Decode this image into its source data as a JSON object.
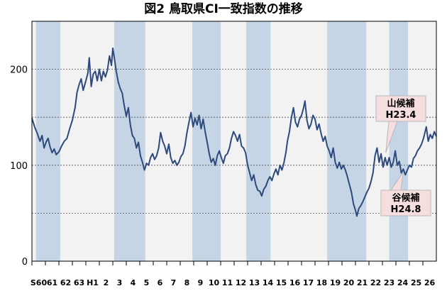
{
  "chart_data": {
    "type": "line",
    "title": "図2 鳥取県CI一致指数の推移",
    "ylim": [
      0,
      250
    ],
    "yticks": [
      0,
      100,
      200
    ],
    "gridlines": [
      50,
      100,
      150,
      200
    ],
    "xlim": [
      1985,
      2015.0
    ],
    "x_tick_labels": [
      {
        "label": "S60",
        "x": 1985.5
      },
      {
        "label": "61",
        "x": 1986.5
      },
      {
        "label": "62",
        "x": 1987.5
      },
      {
        "label": "63",
        "x": 1988.5
      },
      {
        "label": "H1",
        "x": 1989.5
      },
      {
        "label": "2",
        "x": 1990.5
      },
      {
        "label": "3",
        "x": 1991.5
      },
      {
        "label": "4",
        "x": 1992.5
      },
      {
        "label": "5",
        "x": 1993.5
      },
      {
        "label": "6",
        "x": 1994.5
      },
      {
        "label": "7",
        "x": 1995.5
      },
      {
        "label": "8",
        "x": 1996.5
      },
      {
        "label": "9",
        "x": 1997.5
      },
      {
        "label": "10",
        "x": 1998.5
      },
      {
        "label": "11",
        "x": 1999.5
      },
      {
        "label": "12",
        "x": 2000.5
      },
      {
        "label": "13",
        "x": 2001.5
      },
      {
        "label": "14",
        "x": 2002.5
      },
      {
        "label": "15",
        "x": 2003.5
      },
      {
        "label": "16",
        "x": 2004.5
      },
      {
        "label": "17",
        "x": 2005.5
      },
      {
        "label": "18",
        "x": 2006.5
      },
      {
        "label": "19",
        "x": 2007.5
      },
      {
        "label": "20",
        "x": 2008.5
      },
      {
        "label": "21",
        "x": 2009.5
      },
      {
        "label": "22",
        "x": 2010.5
      },
      {
        "label": "23",
        "x": 2011.5
      },
      {
        "label": "24",
        "x": 2012.5
      },
      {
        "label": "25",
        "x": 2013.5
      },
      {
        "label": "26",
        "x": 2014.5
      }
    ],
    "recession_bands": [
      [
        1985.3,
        1987.1
      ],
      [
        1991.1,
        1993.4
      ],
      [
        1996.9,
        1999.0
      ],
      [
        2000.9,
        2002.7
      ],
      [
        2006.9,
        2009.8
      ],
      [
        2011.5,
        2012.9
      ]
    ],
    "series": [
      {
        "values": [
          [
            1985.0,
            149
          ],
          [
            1985.2,
            140
          ],
          [
            1985.4,
            133
          ],
          [
            1985.6,
            125
          ],
          [
            1985.75,
            131
          ],
          [
            1985.9,
            118
          ],
          [
            1986.05,
            124
          ],
          [
            1986.2,
            128
          ],
          [
            1986.35,
            119
          ],
          [
            1986.5,
            113
          ],
          [
            1986.65,
            117
          ],
          [
            1986.8,
            111
          ],
          [
            1987.0,
            114
          ],
          [
            1987.2,
            120
          ],
          [
            1987.4,
            125
          ],
          [
            1987.6,
            128
          ],
          [
            1987.8,
            138
          ],
          [
            1988.0,
            147
          ],
          [
            1988.2,
            160
          ],
          [
            1988.35,
            176
          ],
          [
            1988.5,
            184
          ],
          [
            1988.65,
            190
          ],
          [
            1988.8,
            178
          ],
          [
            1989.0,
            188
          ],
          [
            1989.15,
            196
          ],
          [
            1989.25,
            212
          ],
          [
            1989.4,
            182
          ],
          [
            1989.55,
            195
          ],
          [
            1989.7,
            198
          ],
          [
            1989.85,
            188
          ],
          [
            1990.0,
            200
          ],
          [
            1990.15,
            188
          ],
          [
            1990.3,
            198
          ],
          [
            1990.45,
            192
          ],
          [
            1990.6,
            199
          ],
          [
            1990.75,
            214
          ],
          [
            1990.9,
            204
          ],
          [
            1991.0,
            222
          ],
          [
            1991.12,
            211
          ],
          [
            1991.25,
            198
          ],
          [
            1991.4,
            187
          ],
          [
            1991.55,
            180
          ],
          [
            1991.7,
            175
          ],
          [
            1991.85,
            162
          ],
          [
            1992.0,
            151
          ],
          [
            1992.15,
            160
          ],
          [
            1992.3,
            142
          ],
          [
            1992.45,
            131
          ],
          [
            1992.6,
            128
          ],
          [
            1992.75,
            118
          ],
          [
            1992.9,
            124
          ],
          [
            1993.05,
            110
          ],
          [
            1993.2,
            103
          ],
          [
            1993.35,
            95
          ],
          [
            1993.5,
            102
          ],
          [
            1993.65,
            100
          ],
          [
            1993.8,
            108
          ],
          [
            1993.95,
            112
          ],
          [
            1994.1,
            106
          ],
          [
            1994.25,
            110
          ],
          [
            1994.4,
            118
          ],
          [
            1994.55,
            134
          ],
          [
            1994.7,
            125
          ],
          [
            1994.85,
            120
          ],
          [
            1995.0,
            112
          ],
          [
            1995.15,
            122
          ],
          [
            1995.3,
            108
          ],
          [
            1995.45,
            102
          ],
          [
            1995.6,
            105
          ],
          [
            1995.75,
            100
          ],
          [
            1995.9,
            103
          ],
          [
            1996.05,
            109
          ],
          [
            1996.2,
            112
          ],
          [
            1996.35,
            120
          ],
          [
            1996.5,
            134
          ],
          [
            1996.65,
            145
          ],
          [
            1996.8,
            155
          ],
          [
            1996.95,
            140
          ],
          [
            1997.1,
            149
          ],
          [
            1997.25,
            142
          ],
          [
            1997.4,
            152
          ],
          [
            1997.55,
            138
          ],
          [
            1997.7,
            148
          ],
          [
            1997.85,
            135
          ],
          [
            1998.0,
            124
          ],
          [
            1998.15,
            112
          ],
          [
            1998.3,
            103
          ],
          [
            1998.45,
            107
          ],
          [
            1998.6,
            100
          ],
          [
            1998.75,
            110
          ],
          [
            1998.9,
            115
          ],
          [
            1999.05,
            108
          ],
          [
            1999.2,
            102
          ],
          [
            1999.35,
            110
          ],
          [
            1999.5,
            112
          ],
          [
            1999.65,
            118
          ],
          [
            1999.8,
            128
          ],
          [
            1999.95,
            135
          ],
          [
            2000.1,
            131
          ],
          [
            2000.25,
            125
          ],
          [
            2000.4,
            132
          ],
          [
            2000.55,
            120
          ],
          [
            2000.7,
            118
          ],
          [
            2000.85,
            113
          ],
          [
            2001.0,
            100
          ],
          [
            2001.15,
            92
          ],
          [
            2001.3,
            84
          ],
          [
            2001.45,
            90
          ],
          [
            2001.6,
            80
          ],
          [
            2001.75,
            74
          ],
          [
            2001.9,
            73
          ],
          [
            2002.05,
            68
          ],
          [
            2002.2,
            75
          ],
          [
            2002.35,
            78
          ],
          [
            2002.5,
            84
          ],
          [
            2002.65,
            88
          ],
          [
            2002.8,
            84
          ],
          [
            2002.95,
            91
          ],
          [
            2003.1,
            96
          ],
          [
            2003.25,
            90
          ],
          [
            2003.4,
            100
          ],
          [
            2003.55,
            95
          ],
          [
            2003.7,
            103
          ],
          [
            2003.85,
            114
          ],
          [
            2003.95,
            125
          ],
          [
            2004.1,
            135
          ],
          [
            2004.25,
            150
          ],
          [
            2004.4,
            160
          ],
          [
            2004.55,
            145
          ],
          [
            2004.7,
            140
          ],
          [
            2004.85,
            148
          ],
          [
            2005.0,
            152
          ],
          [
            2005.15,
            160
          ],
          [
            2005.25,
            167
          ],
          [
            2005.4,
            147
          ],
          [
            2005.55,
            138
          ],
          [
            2005.7,
            143
          ],
          [
            2005.85,
            152
          ],
          [
            2006.0,
            148
          ],
          [
            2006.15,
            137
          ],
          [
            2006.3,
            143
          ],
          [
            2006.45,
            133
          ],
          [
            2006.6,
            125
          ],
          [
            2006.75,
            130
          ],
          [
            2006.9,
            120
          ],
          [
            2007.05,
            115
          ],
          [
            2007.2,
            108
          ],
          [
            2007.35,
            118
          ],
          [
            2007.5,
            103
          ],
          [
            2007.65,
            97
          ],
          [
            2007.8,
            103
          ],
          [
            2007.95,
            96
          ],
          [
            2008.1,
            100
          ],
          [
            2008.25,
            95
          ],
          [
            2008.4,
            88
          ],
          [
            2008.55,
            80
          ],
          [
            2008.7,
            72
          ],
          [
            2008.85,
            60
          ],
          [
            2009.0,
            53
          ],
          [
            2009.1,
            47
          ],
          [
            2009.25,
            55
          ],
          [
            2009.4,
            58
          ],
          [
            2009.55,
            62
          ],
          [
            2009.7,
            67
          ],
          [
            2009.85,
            72
          ],
          [
            2010.0,
            76
          ],
          [
            2010.15,
            83
          ],
          [
            2010.3,
            92
          ],
          [
            2010.45,
            110
          ],
          [
            2010.6,
            118
          ],
          [
            2010.75,
            103
          ],
          [
            2010.9,
            112
          ],
          [
            2011.05,
            98
          ],
          [
            2011.2,
            108
          ],
          [
            2011.35,
            100
          ],
          [
            2011.5,
            108
          ],
          [
            2011.65,
            98
          ],
          [
            2011.8,
            103
          ],
          [
            2011.95,
            115
          ],
          [
            2012.1,
            100
          ],
          [
            2012.25,
            104
          ],
          [
            2012.4,
            92
          ],
          [
            2012.55,
            96
          ],
          [
            2012.7,
            90
          ],
          [
            2012.85,
            95
          ],
          [
            2013.0,
            100
          ],
          [
            2013.15,
            98
          ],
          [
            2013.3,
            107
          ],
          [
            2013.45,
            110
          ],
          [
            2013.6,
            115
          ],
          [
            2013.75,
            118
          ],
          [
            2013.9,
            122
          ],
          [
            2014.05,
            128
          ],
          [
            2014.15,
            134
          ],
          [
            2014.25,
            140
          ],
          [
            2014.4,
            125
          ],
          [
            2014.55,
            132
          ],
          [
            2014.7,
            128
          ],
          [
            2014.85,
            135
          ],
          [
            2015.0,
            130
          ]
        ]
      }
    ],
    "annotations": [
      {
        "line1": "山候補",
        "line2": "H23.4"
      },
      {
        "line1": "谷候補",
        "line2": "H24.8"
      }
    ]
  },
  "colors": {
    "line": "#2e4a7d",
    "band": "#c5d5e6",
    "plot_bg": "#f2f2f2",
    "callout_bg": "#f6dede",
    "callout_border": "#b8b8b8"
  }
}
